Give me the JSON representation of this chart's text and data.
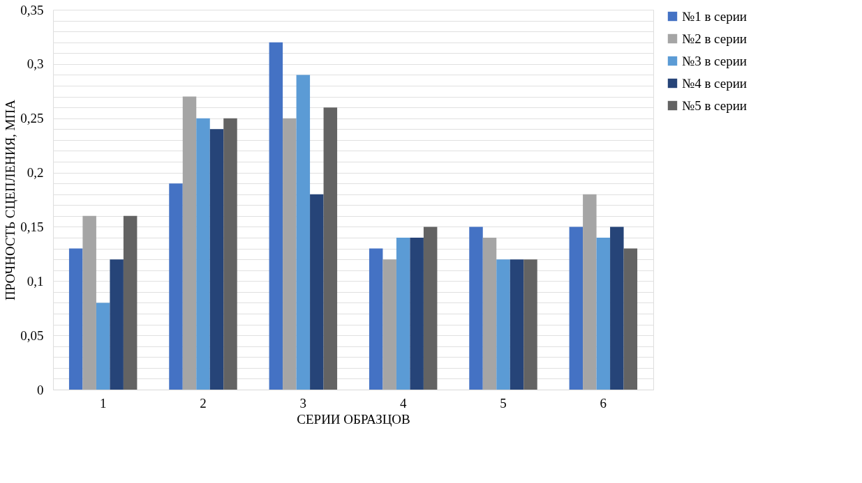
{
  "chart_data": {
    "type": "bar",
    "xlabel": "СЕРИИ ОБРАЗЦОВ",
    "ylabel": "ПРОЧНОСТЬ СЦЕПЛЕНИЯ, МПА",
    "categories": [
      "1",
      "2",
      "3",
      "4",
      "5",
      "6"
    ],
    "series": [
      {
        "name": "№1 в серии",
        "color": "#4472c4",
        "values": [
          0.13,
          0.19,
          0.32,
          0.13,
          0.15,
          0.15
        ]
      },
      {
        "name": "№2 в серии",
        "color": "#a5a5a5",
        "values": [
          0.16,
          0.27,
          0.25,
          0.12,
          0.14,
          0.18
        ]
      },
      {
        "name": "№3 в серии",
        "color": "#5b9bd5",
        "values": [
          0.08,
          0.25,
          0.29,
          0.14,
          0.12,
          0.14
        ]
      },
      {
        "name": "№4 в серии",
        "color": "#264478",
        "values": [
          0.12,
          0.24,
          0.18,
          0.14,
          0.12,
          0.15
        ]
      },
      {
        "name": "№5 в серии",
        "color": "#636363",
        "values": [
          0.16,
          0.25,
          0.26,
          0.15,
          0.12,
          0.13
        ]
      }
    ],
    "ylim": [
      0,
      0.35
    ],
    "yticks": [
      0,
      {
        "value": 0.01,
        "label": null
      },
      {
        "value": 0.02,
        "label": null
      },
      {
        "value": 0.03,
        "label": null
      },
      {
        "value": 0.04,
        "label": null
      },
      {
        "value": 0.05,
        "label": "0,05"
      },
      {
        "value": 0.06,
        "label": null
      },
      {
        "value": 0.07,
        "label": null
      },
      {
        "value": 0.08,
        "label": null
      },
      {
        "value": 0.09,
        "label": null
      },
      {
        "value": 0.1,
        "label": "0,1"
      },
      {
        "value": 0.11,
        "label": null
      },
      {
        "value": 0.12,
        "label": null
      },
      {
        "value": 0.13,
        "label": null
      },
      {
        "value": 0.14,
        "label": null
      },
      {
        "value": 0.15,
        "label": "0,15"
      },
      {
        "value": 0.16,
        "label": null
      },
      {
        "value": 0.17,
        "label": null
      },
      {
        "value": 0.18,
        "label": null
      },
      {
        "value": 0.19,
        "label": null
      },
      {
        "value": 0.2,
        "label": "0,2"
      },
      {
        "value": 0.21,
        "label": null
      },
      {
        "value": 0.22,
        "label": null
      },
      {
        "value": 0.23,
        "label": null
      },
      {
        "value": 0.24,
        "label": null
      },
      {
        "value": 0.25,
        "label": "0,25"
      },
      {
        "value": 0.26,
        "label": null
      },
      {
        "value": 0.27,
        "label": null
      },
      {
        "value": 0.28,
        "label": null
      },
      {
        "value": 0.29,
        "label": null
      },
      {
        "value": 0.3,
        "label": "0,3"
      },
      {
        "value": 0.31,
        "label": null
      },
      {
        "value": 0.32,
        "label": null
      },
      {
        "value": 0.33,
        "label": null
      },
      {
        "value": 0.34,
        "label": null
      },
      {
        "value": 0.35,
        "label": "0,35"
      }
    ],
    "grid": "y",
    "legend": "right"
  }
}
